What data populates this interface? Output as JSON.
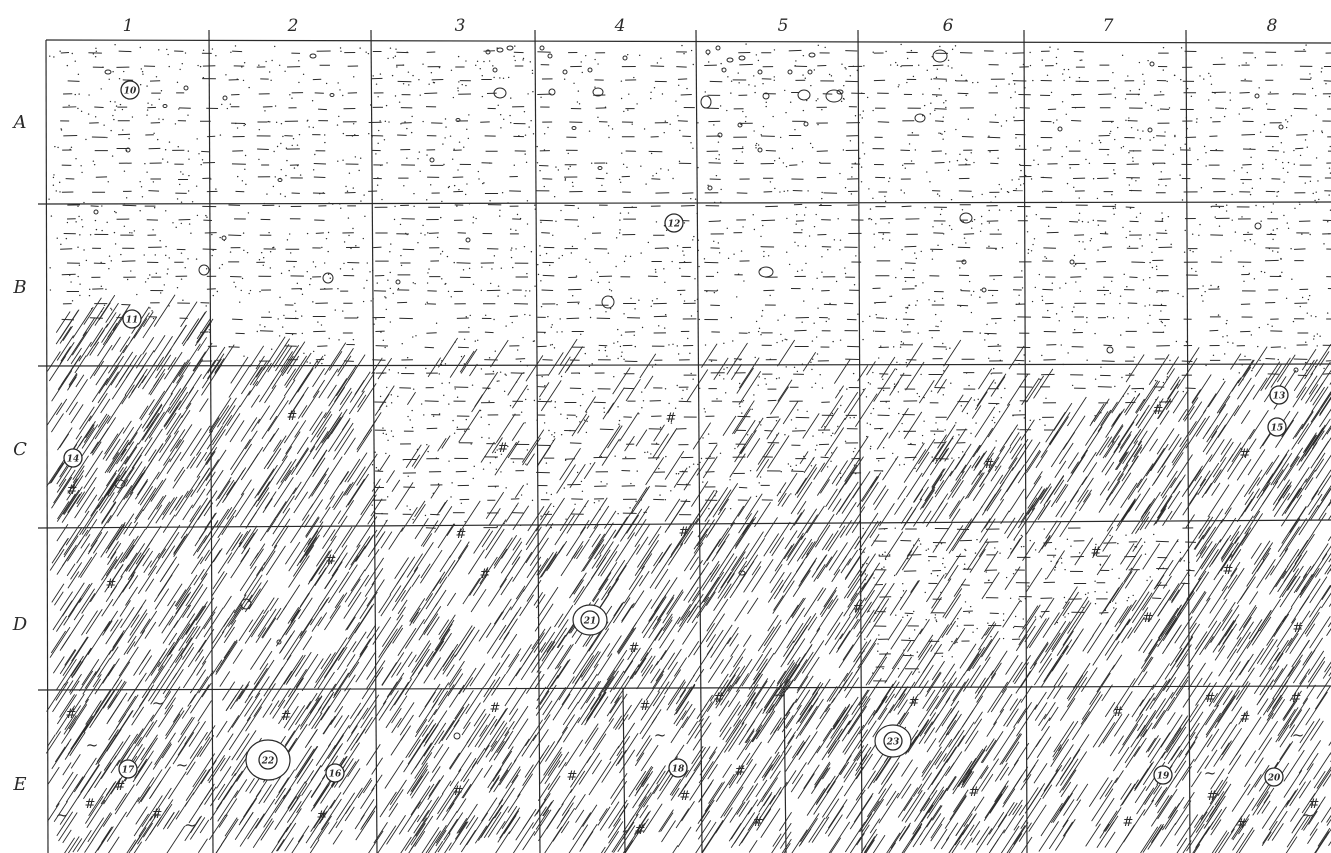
{
  "columns": [
    "1",
    "2",
    "3",
    "4",
    "5",
    "6",
    "7",
    "8"
  ],
  "rows": [
    "A",
    "B",
    "C",
    "D",
    "E"
  ],
  "finds": [
    {
      "number": "10",
      "cell": "A1"
    },
    {
      "number": "11",
      "cell": "B1"
    },
    {
      "number": "12",
      "cell": "B4"
    },
    {
      "number": "13",
      "cell": "C8"
    },
    {
      "number": "14",
      "cell": "C1"
    },
    {
      "number": "15",
      "cell": "C8"
    },
    {
      "number": "16",
      "cell": "E2"
    },
    {
      "number": "17",
      "cell": "E1"
    },
    {
      "number": "18",
      "cell": "E4"
    },
    {
      "number": "19",
      "cell": "E7"
    },
    {
      "number": "20",
      "cell": "E8"
    },
    {
      "number": "21",
      "cell": "D4"
    },
    {
      "number": "22",
      "cell": "E2"
    },
    {
      "number": "23",
      "cell": "E6"
    }
  ],
  "legend_marks": {
    "hash": "#",
    "wave": "~"
  },
  "colors": {
    "ink": "#2a2a2a",
    "paper": "#ffffff"
  }
}
